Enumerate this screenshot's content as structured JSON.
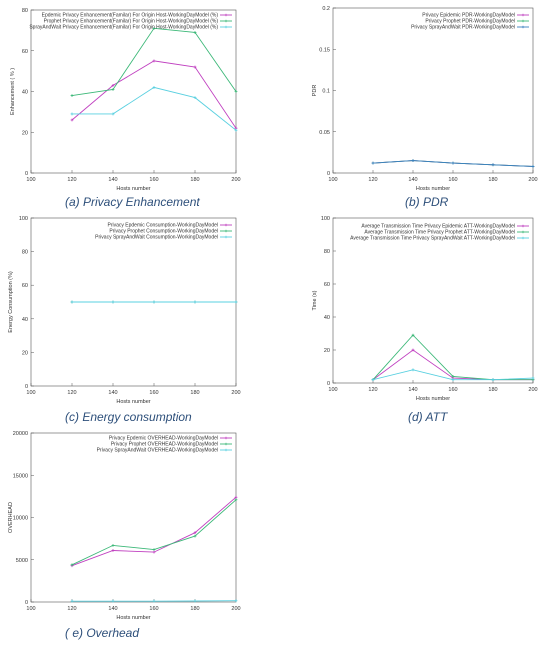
{
  "chart_data": [
    {
      "id": "a",
      "type": "line",
      "caption": "(a) Privacy Enhancement",
      "xlabel": "Hosts number",
      "ylabel": "Enhancement ( % )",
      "xlim": [
        100,
        200
      ],
      "ylim": [
        0,
        80
      ],
      "xticks": [
        "100",
        "120",
        "140",
        "160",
        "180",
        "200"
      ],
      "yticks": [
        "0",
        "20",
        "40",
        "60",
        "80"
      ],
      "x": [
        120,
        140,
        160,
        180,
        200
      ],
      "legend_position": "top-right",
      "series": [
        {
          "name": "Epdemic Privacy Enhancement(Familar) For Origin Host-WorkingDayModel (%)",
          "color": "#c040c0",
          "values": [
            26,
            43,
            55,
            52,
            22
          ]
        },
        {
          "name": "Prophet  Privacy Enhancement(Familar) For Origin Host-WorkingDayModel (%)",
          "color": "#3cb878",
          "values": [
            38,
            41,
            71,
            69,
            40
          ]
        },
        {
          "name": "SprayAndWait  Privacy Enhancement(Familar) For Origin Host-WorkingDayModel (%)",
          "color": "#5ad0e0",
          "values": [
            29,
            29,
            42,
            37,
            21
          ]
        }
      ]
    },
    {
      "id": "b",
      "type": "line",
      "caption": "(b) PDR",
      "xlabel": "Hosts number",
      "ylabel": "PDR",
      "xlim": [
        100,
        200
      ],
      "ylim": [
        0,
        0.2
      ],
      "xticks": [
        "100",
        "120",
        "140",
        "160",
        "180",
        "200"
      ],
      "yticks": [
        "0",
        "0.05",
        "0.1",
        "0.15",
        "0.2"
      ],
      "x": [
        120,
        140,
        160,
        180,
        200
      ],
      "legend_position": "top-right",
      "series": [
        {
          "name": "Privacy Epidemic PDR-WorkingDayModel",
          "color": "#c040c0",
          "values": [
            0.012,
            0.015,
            0.012,
            0.01,
            0.008
          ]
        },
        {
          "name": "Privacy Prophet PDR-WorkingDayModel",
          "color": "#3cb878",
          "values": [
            0.012,
            0.015,
            0.012,
            0.01,
            0.008
          ]
        },
        {
          "name": "Privacy SprayAndWait PDR-WorkingDayModel",
          "color": "#3a7fc0",
          "values": [
            0.012,
            0.015,
            0.012,
            0.01,
            0.008
          ]
        }
      ]
    },
    {
      "id": "c",
      "type": "line",
      "caption": "(c) Energy consumption",
      "xlabel": "Hosts number",
      "ylabel": "Energy Consumption (%)",
      "xlim": [
        100,
        200
      ],
      "ylim": [
        0,
        100
      ],
      "xticks": [
        "100",
        "120",
        "140",
        "160",
        "180",
        "200"
      ],
      "yticks": [
        "0",
        "20",
        "40",
        "60",
        "80",
        "100"
      ],
      "x": [
        120,
        140,
        160,
        180,
        200
      ],
      "legend_position": "top-right",
      "series": [
        {
          "name": "Privacy Epdemic Consumption-WorkingDayModel",
          "color": "#c040c0",
          "values": [
            50,
            50,
            50,
            50,
            50
          ]
        },
        {
          "name": "Privacy Prophet Consumption-WorkingDayModel",
          "color": "#3cb878",
          "values": [
            50,
            50,
            50,
            50,
            50
          ]
        },
        {
          "name": "Privacy SprayAndWait Consumption-WorkingDayModel",
          "color": "#5ad0e0",
          "values": [
            50,
            50,
            50,
            50,
            50
          ]
        }
      ]
    },
    {
      "id": "d",
      "type": "line",
      "caption": "(d) ATT",
      "xlabel": "Hosts number",
      "ylabel": "Time (s)",
      "xlim": [
        100,
        200
      ],
      "ylim": [
        0,
        100
      ],
      "xticks": [
        "100",
        "120",
        "140",
        "160",
        "180",
        "200"
      ],
      "yticks": [
        "0",
        "20",
        "40",
        "60",
        "80",
        "100"
      ],
      "x": [
        120,
        140,
        160,
        180,
        200
      ],
      "legend_position": "top-right",
      "series": [
        {
          "name": "Average Transmission Time Privacy Epidemic ATT-WorkingDayModel",
          "color": "#c040c0",
          "values": [
            2,
            20,
            3,
            2,
            2
          ]
        },
        {
          "name": "Average Transmission Time Privacy Prophet ATT-WorkingDayModel",
          "color": "#3cb878",
          "values": [
            2,
            29,
            4,
            2,
            2
          ]
        },
        {
          "name": "Average Transmission Time Privacy SprayAndWait ATT-WorkingDayModel",
          "color": "#5ad0e0",
          "values": [
            2,
            8,
            2,
            2,
            3
          ]
        }
      ]
    },
    {
      "id": "e",
      "type": "line",
      "caption": "( e) Overhead",
      "xlabel": "Hosts number",
      "ylabel": "OVERHEAD",
      "xlim": [
        100,
        200
      ],
      "ylim": [
        0,
        20000
      ],
      "xticks": [
        "100",
        "120",
        "140",
        "160",
        "180",
        "200"
      ],
      "yticks": [
        "0",
        "5000",
        "10000",
        "15000",
        "20000"
      ],
      "x": [
        120,
        140,
        160,
        180,
        200
      ],
      "legend_position": "top-right",
      "series": [
        {
          "name": "Privacy Epdemic OVERHEAD-WorkingDayModel",
          "color": "#c040c0",
          "values": [
            4300,
            6100,
            5900,
            8200,
            12400
          ]
        },
        {
          "name": "Privacy Prophet OVERHEAD-WorkingDayModel",
          "color": "#3cb878",
          "values": [
            4400,
            6700,
            6200,
            7800,
            12100
          ]
        },
        {
          "name": "Privacy SprayAndWait OVERHEAD-WorkingDayModel",
          "color": "#5ad0e0",
          "values": [
            100,
            100,
            100,
            120,
            150
          ]
        }
      ]
    }
  ]
}
